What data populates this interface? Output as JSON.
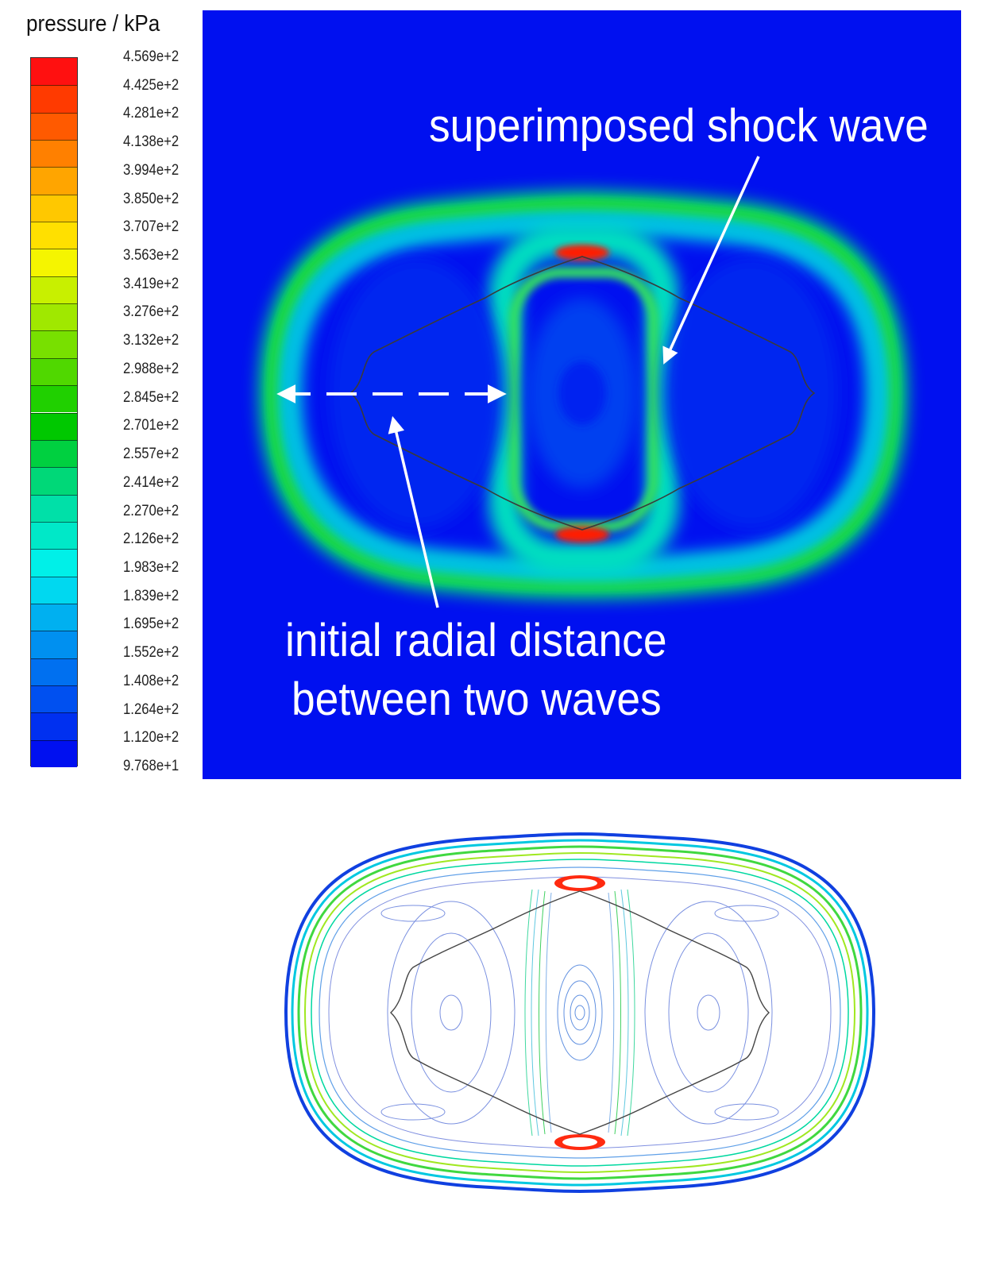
{
  "legend": {
    "title": "pressure / kPa",
    "ticks": [
      "4.569e+2",
      "4.425e+2",
      "4.281e+2",
      "4.138e+2",
      "3.994e+2",
      "3.850e+2",
      "3.707e+2",
      "3.563e+2",
      "3.419e+2",
      "3.276e+2",
      "3.132e+2",
      "2.988e+2",
      "2.845e+2",
      "2.701e+2",
      "2.557e+2",
      "2.414e+2",
      "2.270e+2",
      "2.126e+2",
      "1.983e+2",
      "1.839e+2",
      "1.695e+2",
      "1.552e+2",
      "1.408e+2",
      "1.264e+2",
      "1.120e+2",
      "9.768e+1"
    ],
    "colors": [
      "#ff1010",
      "#ff3a00",
      "#ff5a00",
      "#ff8000",
      "#ffa500",
      "#ffc800",
      "#ffe000",
      "#f5f500",
      "#c8f000",
      "#a0e800",
      "#78e000",
      "#50d800",
      "#20d000",
      "#00c800",
      "#00d040",
      "#00d878",
      "#00e0a8",
      "#00e8c8",
      "#00f0e8",
      "#00d8f0",
      "#00b0f0",
      "#0090f0",
      "#0070f0",
      "#0050f0",
      "#0030f0",
      "#0010f0"
    ]
  },
  "annotations": {
    "superimposed": "superimposed shock wave",
    "initial_line1": "initial radial distance",
    "initial_line2": "between two waves"
  },
  "colors": {
    "background_field": "#0010f0",
    "annotation_text": "#ffffff",
    "peak": "#ff1a00"
  }
}
